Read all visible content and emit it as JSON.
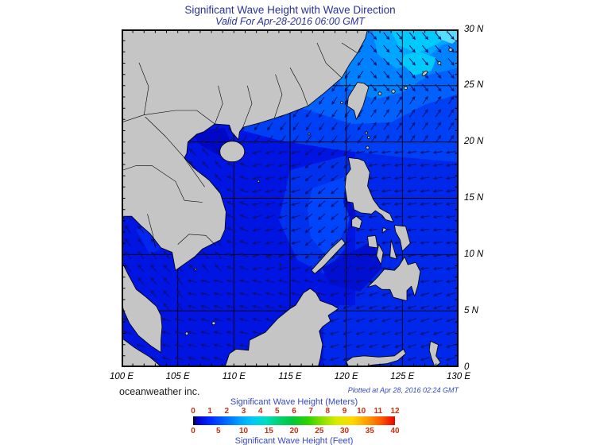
{
  "header": {
    "title": "Significant Wave Height with Wave Direction",
    "subtitle": "Valid For Apr-28-2016 06:00 GMT"
  },
  "footer": {
    "credit": "oceanweather inc.",
    "plotted": "Plotted at Apr 28, 2016 02:24 GMT"
  },
  "axes": {
    "lon_labels": [
      "100 E",
      "105 E",
      "110 E",
      "115 E",
      "120 E",
      "125 E",
      "130 E"
    ],
    "lat_labels": [
      "30 N",
      "25 N",
      "20 N",
      "15 N",
      "10 N",
      "5 N",
      "0"
    ]
  },
  "colorbar": {
    "title_meters": "Significant Wave Height (Meters)",
    "title_feet": "Significant Wave Height (Feet)",
    "meters_ticks": [
      "0",
      "1",
      "2",
      "3",
      "4",
      "5",
      "6",
      "7",
      "8",
      "9",
      "10",
      "11",
      "12"
    ],
    "feet_ticks": [
      "0",
      "5",
      "10",
      "15",
      "20",
      "25",
      "30",
      "35",
      "40"
    ],
    "label_color": "#3648c8",
    "tick_color": "#cc2e10",
    "gradient": [
      "#000000 0%",
      "#0000c8 2%",
      "#0026ff 8%",
      "#0066ff 16%",
      "#00a0ff 23%",
      "#00ccf4 30%",
      "#00dcc0 36%",
      "#00d278 42%",
      "#00c83c 49%",
      "#30d200 57%",
      "#8ce000 64%",
      "#d8ec00 71%",
      "#ffd800 79%",
      "#ffa000 86%",
      "#ff5a00 93%",
      "#e80000 100%"
    ]
  },
  "chart_data": {
    "type": "heatmap",
    "title": "Significant Wave Height with Wave Direction",
    "subtitle": "Valid For Apr-28-2016 06:00 GMT",
    "region": "South China Sea / Philippine Sea weather chart",
    "lon_range": [
      100,
      130
    ],
    "lat_range": [
      0,
      30
    ],
    "grid_interval_deg": 5,
    "lon_tick_labels": [
      "100 E",
      "105 E",
      "110 E",
      "115 E",
      "120 E",
      "125 E",
      "130 E"
    ],
    "lat_tick_labels": [
      "30 N",
      "25 N",
      "20 N",
      "15 N",
      "10 N",
      "5 N",
      "0"
    ],
    "colorbar_meters": [
      0,
      1,
      2,
      3,
      4,
      5,
      6,
      7,
      8,
      9,
      10,
      11,
      12
    ],
    "colorbar_feet": [
      0,
      5,
      10,
      15,
      20,
      25,
      30,
      35,
      40
    ],
    "ocean_base_color": "#0014e2",
    "land_color": "#c5c5c5",
    "wave_height_field_m": [
      {
        "region": "central and southern South China Sea",
        "sig_wave_height_m": 0.5
      },
      {
        "region": "Gulf of Thailand",
        "sig_wave_height_m": 0.5
      },
      {
        "region": "band west of Luzon (115-120E, 9-18N)",
        "sig_wave_height_m": 1.0
      },
      {
        "region": "Philippine Sea east of Philippines",
        "sig_wave_height_m": 1.0
      },
      {
        "region": "northern SCS and Taiwan Strait",
        "sig_wave_height_m": 1.5
      },
      {
        "region": "northeast corner near Ryukyu Islands (123-130E, 24-30N)",
        "sig_wave_height_m": 2.5
      },
      {
        "region": "Sulu Sea",
        "sig_wave_height_m": 0.5
      },
      {
        "region": "Celebes Sea",
        "sig_wave_height_m": 0.75
      }
    ],
    "vector_field": {
      "spacing_deg": 1.15,
      "arrow_color": "#10106e",
      "default_dir": 270,
      "regions": [
        {
          "lon": [
            121.5,
            130
          ],
          "lat": [
            24,
            30
          ],
          "dir": 140
        },
        {
          "lon": [
            122,
            130
          ],
          "lat": [
            19.5,
            24
          ],
          "dir": 35
        },
        {
          "lon": [
            100,
            122
          ],
          "lat": [
            19.5,
            30
          ],
          "dir": 215
        },
        {
          "lon": [
            120.5,
            130
          ],
          "lat": [
            7.5,
            19.5
          ],
          "dir": 262
        },
        {
          "lon": [
            118,
            130
          ],
          "lat": [
            0,
            7.5
          ],
          "dir": 252
        },
        {
          "lon": [
            116,
            120.5
          ],
          "lat": [
            8,
            19.5
          ],
          "dir": 230
        },
        {
          "lon": [
            112,
            116
          ],
          "lat": [
            8,
            19.5
          ],
          "dir": 255
        },
        {
          "lon": [
            109,
            112
          ],
          "lat": [
            8,
            19.5
          ],
          "dir": 292
        },
        {
          "lon": [
            104,
            109
          ],
          "lat": [
            8,
            19.5
          ],
          "dir": 318
        },
        {
          "lon": [
            99,
            105.5
          ],
          "lat": [
            5,
            13.5
          ],
          "dir": 322
        },
        {
          "lon": [
            100,
            118
          ],
          "lat": [
            0,
            8
          ],
          "dir": 285
        }
      ]
    },
    "credit": "oceanweather inc.",
    "plotted_at": "Plotted at Apr 28, 2016 02:24 GMT"
  }
}
